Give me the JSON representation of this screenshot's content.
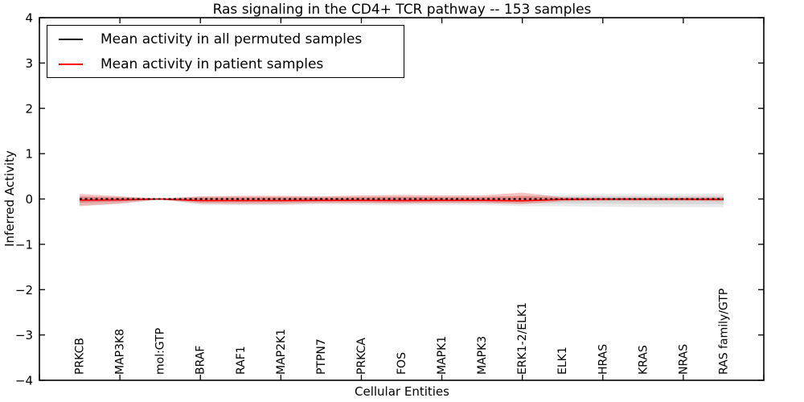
{
  "title": "Ras signaling in the CD4+ TCR pathway -- 153 samples",
  "axes": {
    "x_label": "Cellular Entities",
    "y_label": "Inferred Activity"
  },
  "legend": {
    "items": [
      {
        "label": "Mean activity in all permuted samples",
        "color": "#000000"
      },
      {
        "label": "Mean activity in patient samples",
        "color": "#ff0000"
      }
    ]
  },
  "chart_data": {
    "type": "line",
    "title": "Ras signaling in the CD4+ TCR pathway -- 153 samples",
    "xlabel": "Cellular Entities",
    "ylabel": "Inferred Activity",
    "ylim": [
      -4,
      4
    ],
    "xlim_units": [
      0,
      18
    ],
    "grid": false,
    "legend_position": "upper left",
    "ytick_values": [
      4,
      3,
      2,
      1,
      0,
      -1,
      -2,
      -3,
      -4
    ],
    "ytick_labels": [
      "4",
      "3",
      "2",
      "1",
      "0",
      "−1",
      "−2",
      "−3",
      "−4"
    ],
    "categories": [
      "PRKCB",
      "MAP3K8",
      "mol:GTP",
      "BRAF",
      "RAF1",
      "MAP2K1",
      "PTPN7",
      "PRKCA",
      "FOS",
      "MAPK1",
      "MAPK3",
      "ERK1-2/ELK1",
      "ELK1",
      "HRAS",
      "KRAS",
      "NRAS",
      "RAS family/GTP"
    ],
    "series": [
      {
        "name": "Mean activity in all permuted samples",
        "color": "#000000",
        "style": "dashed",
        "values": [
          0,
          0,
          0,
          0,
          0,
          0,
          0,
          0,
          0,
          0,
          0,
          0,
          0,
          0,
          0,
          0,
          0
        ]
      },
      {
        "name": "Mean activity in patient samples",
        "color": "#ff0000",
        "style": "solid",
        "values": [
          -0.025,
          -0.02,
          0,
          -0.035,
          -0.035,
          -0.035,
          -0.03,
          -0.03,
          -0.035,
          -0.03,
          -0.03,
          -0.04,
          -0.01,
          -0.005,
          -0.005,
          -0.005,
          -0.01
        ]
      }
    ],
    "bands": [
      {
        "name": "permuted-std-outer",
        "color": "#808080",
        "opacity": 0.17,
        "hi": [
          0.06,
          0.05,
          0.01,
          0.05,
          0.05,
          0.05,
          0.05,
          0.05,
          0.06,
          0.05,
          0.05,
          0.07,
          0.09,
          0.11,
          0.11,
          0.11,
          0.12
        ],
        "lo": [
          -0.14,
          -0.11,
          -0.01,
          -0.13,
          -0.14,
          -0.14,
          -0.12,
          -0.13,
          -0.14,
          -0.13,
          -0.13,
          -0.16,
          -0.16,
          -0.17,
          -0.18,
          -0.18,
          -0.18
        ]
      },
      {
        "name": "permuted-std-inner",
        "color": "#808080",
        "opacity": 0.17,
        "hi": [
          0.04,
          0.03,
          0.005,
          0.03,
          0.03,
          0.03,
          0.03,
          0.03,
          0.04,
          0.03,
          0.03,
          0.04,
          0.055,
          0.065,
          0.065,
          0.065,
          0.07
        ],
        "lo": [
          -0.08,
          -0.065,
          -0.005,
          -0.08,
          -0.085,
          -0.085,
          -0.07,
          -0.08,
          -0.085,
          -0.08,
          -0.08,
          -0.1,
          -0.1,
          -0.1,
          -0.11,
          -0.11,
          -0.11
        ]
      },
      {
        "name": "patient-std-outer",
        "color": "#e53935",
        "opacity": 0.3,
        "hi": [
          0.11,
          0.06,
          0.01,
          0.06,
          0.07,
          0.07,
          0.06,
          0.08,
          0.09,
          0.08,
          0.08,
          0.14,
          0.04,
          0.03,
          0.03,
          0.03,
          0.04
        ],
        "lo": [
          -0.16,
          -0.1,
          -0.01,
          -0.1,
          -0.11,
          -0.11,
          -0.09,
          -0.09,
          -0.1,
          -0.09,
          -0.09,
          -0.11,
          -0.05,
          -0.04,
          -0.04,
          -0.04,
          -0.05
        ]
      },
      {
        "name": "patient-std-inner",
        "color": "#e53935",
        "opacity": 0.3,
        "hi": [
          0.055,
          0.03,
          0.005,
          0.03,
          0.035,
          0.035,
          0.03,
          0.04,
          0.045,
          0.04,
          0.04,
          0.07,
          0.02,
          0.015,
          0.015,
          0.015,
          0.02
        ],
        "lo": [
          -0.08,
          -0.05,
          -0.005,
          -0.05,
          -0.055,
          -0.055,
          -0.045,
          -0.045,
          -0.05,
          -0.045,
          -0.045,
          -0.055,
          -0.025,
          -0.02,
          -0.02,
          -0.02,
          -0.025
        ]
      }
    ]
  }
}
